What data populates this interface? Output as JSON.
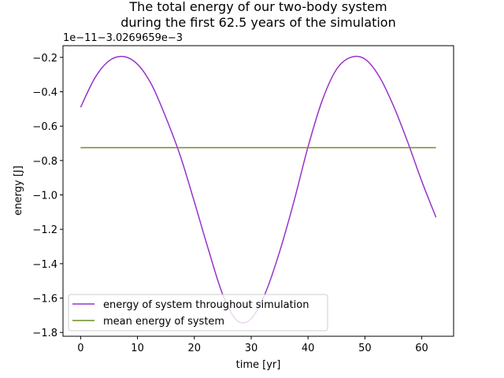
{
  "chart_data": {
    "type": "line",
    "title_lines": [
      "The total energy of our two-body system",
      "during the first 62.5 years of the simulation"
    ],
    "xlabel": "time [yr]",
    "ylabel": "energy [J]",
    "offset_text": "1e−11−3.0269659e−3",
    "xlim": [
      -3.1,
      65.6
    ],
    "ylim": [
      -1.822,
      -0.132
    ],
    "xticks": [
      0,
      10,
      20,
      30,
      40,
      50,
      60
    ],
    "xtick_labels": [
      "0",
      "10",
      "20",
      "30",
      "40",
      "50",
      "60"
    ],
    "yticks": [
      -0.2,
      -0.4,
      -0.6,
      -0.8,
      -1.0,
      -1.2,
      -1.4,
      -1.6,
      -1.8
    ],
    "ytick_labels": [
      "−0.2",
      "−0.4",
      "−0.6",
      "−0.8",
      "−1.0",
      "−1.2",
      "−1.4",
      "−1.6",
      "−1.8"
    ],
    "grid": false,
    "legend_position": "lower-left",
    "series": [
      {
        "name": "energy of system throughout simulation",
        "color": "#9932cc",
        "x": [
          0,
          2.5,
          5,
          7.5,
          10,
          12.5,
          15,
          17.5,
          20,
          22.5,
          25,
          27.5,
          30,
          32.5,
          35,
          37.5,
          40,
          42.5,
          45,
          47.5,
          50,
          52.5,
          55,
          57.5,
          60,
          62.5
        ],
        "y": [
          -0.49,
          -0.32,
          -0.22,
          -0.195,
          -0.24,
          -0.36,
          -0.55,
          -0.77,
          -1.04,
          -1.32,
          -1.58,
          -1.73,
          -1.72,
          -1.57,
          -1.33,
          -1.04,
          -0.72,
          -0.45,
          -0.27,
          -0.2,
          -0.21,
          -0.31,
          -0.48,
          -0.69,
          -0.92,
          -1.13
        ]
      },
      {
        "name": "mean energy of system",
        "color": "#6b8e23",
        "x": [
          0,
          62.5
        ],
        "y": [
          -0.725,
          -0.725
        ]
      }
    ]
  }
}
